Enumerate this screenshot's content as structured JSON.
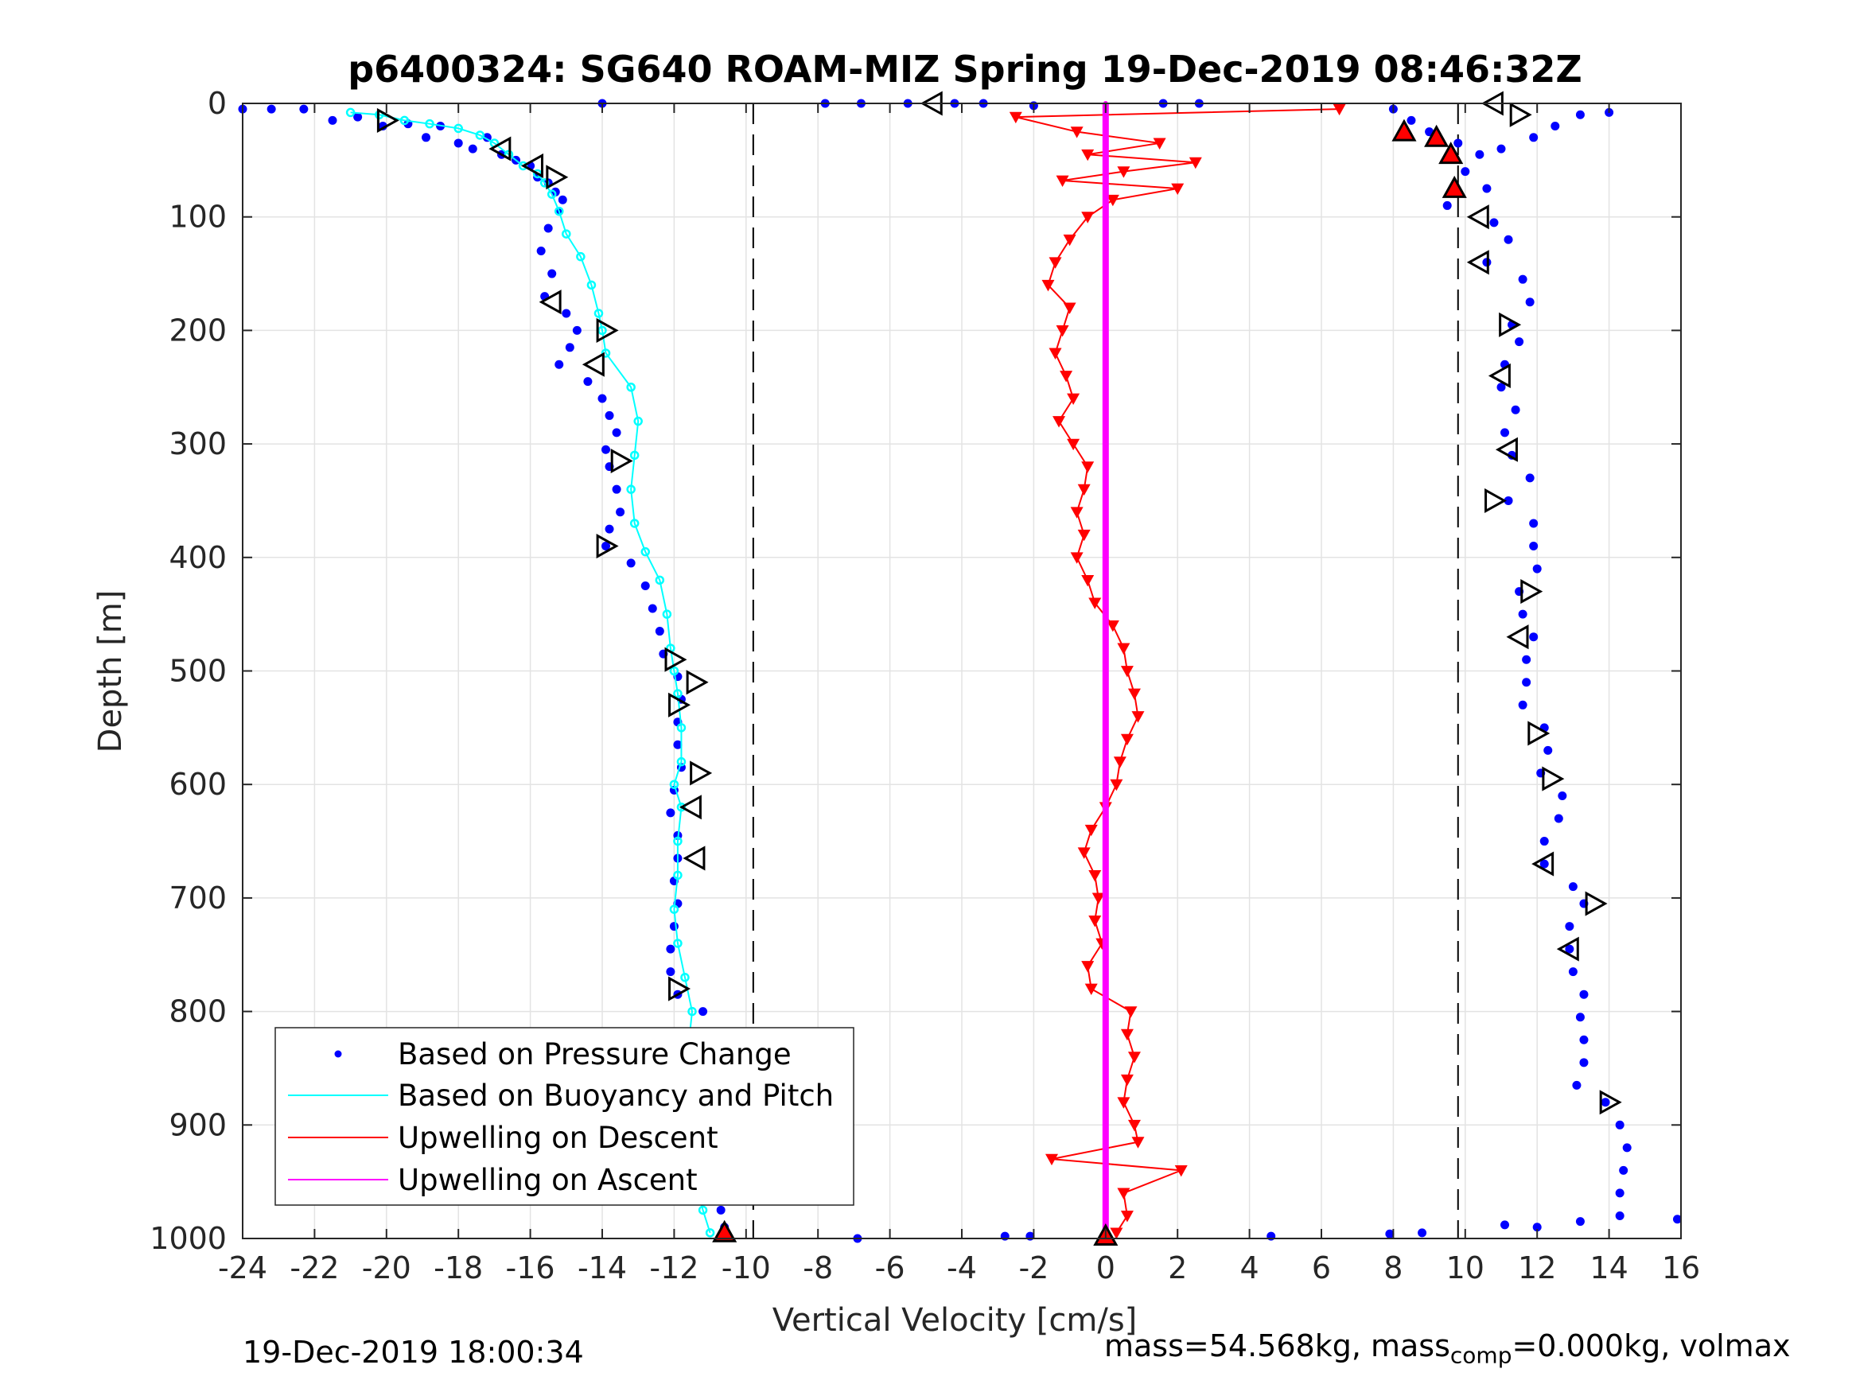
{
  "chart_data": {
    "type": "scatter",
    "title": "p6400324: SG640 ROAM-MIZ Spring 19-Dec-2019 08:46:32Z",
    "xlabel": "Vertical Velocity [cm/s]",
    "ylabel": "Depth [m]",
    "xlim": [
      -24,
      16
    ],
    "ylim": [
      1000,
      0
    ],
    "y_reversed": true,
    "xticks": [
      "-24",
      "-22",
      "-20",
      "-18",
      "-16",
      "-14",
      "-12",
      "-10",
      "-8",
      "-6",
      "-4",
      "-2",
      "0",
      "2",
      "4",
      "6",
      "8",
      "10",
      "12",
      "14",
      "16"
    ],
    "yticks": [
      "0",
      "100",
      "200",
      "300",
      "400",
      "500",
      "600",
      "700",
      "800",
      "900",
      "1000"
    ],
    "grid": true,
    "legend_position": "bottom-left",
    "reference_lines": {
      "x": [
        -9.8,
        9.8
      ],
      "style": "dashed",
      "color": "#000000"
    },
    "series": [
      {
        "name": "Based on Pressure Change",
        "color": "#0000ff",
        "marker": "dot",
        "profile": "descent",
        "points": [
          [
            -24.0,
            5
          ],
          [
            -23.2,
            5
          ],
          [
            -22.3,
            5
          ],
          [
            -21.5,
            15
          ],
          [
            -20.8,
            12
          ],
          [
            -20.1,
            20
          ],
          [
            -19.4,
            18
          ],
          [
            -18.9,
            30
          ],
          [
            -18.5,
            20
          ],
          [
            -18.0,
            35
          ],
          [
            -17.6,
            40
          ],
          [
            -17.2,
            30
          ],
          [
            -16.8,
            45
          ],
          [
            -16.4,
            50
          ],
          [
            -16.0,
            55
          ],
          [
            -15.8,
            65
          ],
          [
            -15.5,
            70
          ],
          [
            -15.3,
            78
          ],
          [
            -15.1,
            85
          ],
          [
            -15.2,
            95
          ],
          [
            -15.5,
            110
          ],
          [
            -15.7,
            130
          ],
          [
            -15.4,
            150
          ],
          [
            -15.6,
            170
          ],
          [
            -15.0,
            185
          ],
          [
            -14.7,
            200
          ],
          [
            -14.9,
            215
          ],
          [
            -15.2,
            230
          ],
          [
            -14.4,
            245
          ],
          [
            -14.0,
            260
          ],
          [
            -13.8,
            275
          ],
          [
            -13.6,
            290
          ],
          [
            -13.9,
            305
          ],
          [
            -13.8,
            320
          ],
          [
            -13.6,
            340
          ],
          [
            -13.5,
            360
          ],
          [
            -13.8,
            375
          ],
          [
            -13.9,
            390
          ],
          [
            -13.2,
            405
          ],
          [
            -12.8,
            425
          ],
          [
            -12.6,
            445
          ],
          [
            -12.4,
            465
          ],
          [
            -12.3,
            485
          ],
          [
            -11.9,
            505
          ],
          [
            -11.8,
            525
          ],
          [
            -11.9,
            545
          ],
          [
            -11.9,
            565
          ],
          [
            -11.8,
            585
          ],
          [
            -12.0,
            605
          ],
          [
            -12.1,
            625
          ],
          [
            -11.9,
            645
          ],
          [
            -11.9,
            665
          ],
          [
            -12.0,
            685
          ],
          [
            -11.9,
            705
          ],
          [
            -12.0,
            725
          ],
          [
            -12.1,
            745
          ],
          [
            -12.1,
            765
          ],
          [
            -11.9,
            785
          ],
          [
            -11.2,
            800
          ],
          [
            -11.0,
            820
          ],
          [
            -11.1,
            840
          ],
          [
            -11.0,
            860
          ],
          [
            -11.0,
            880
          ],
          [
            -11.1,
            900
          ],
          [
            -11.0,
            920
          ],
          [
            -10.9,
            940
          ],
          [
            -10.8,
            960
          ],
          [
            -10.7,
            975
          ],
          [
            -10.6,
            990
          ]
        ]
      },
      {
        "name": "Based on Pressure Change",
        "color": "#0000ff",
        "marker": "dot",
        "profile": "ascent",
        "points": [
          [
            8.0,
            5
          ],
          [
            8.5,
            15
          ],
          [
            9.0,
            25
          ],
          [
            9.8,
            35
          ],
          [
            10.4,
            45
          ],
          [
            11.0,
            40
          ],
          [
            11.9,
            30
          ],
          [
            12.5,
            20
          ],
          [
            13.2,
            10
          ],
          [
            14.0,
            8
          ],
          [
            10.0,
            60
          ],
          [
            10.6,
            75
          ],
          [
            9.5,
            90
          ],
          [
            10.8,
            105
          ],
          [
            11.2,
            120
          ],
          [
            10.6,
            140
          ],
          [
            11.6,
            155
          ],
          [
            11.8,
            175
          ],
          [
            11.3,
            195
          ],
          [
            11.5,
            210
          ],
          [
            11.1,
            230
          ],
          [
            11.0,
            250
          ],
          [
            11.4,
            270
          ],
          [
            11.1,
            290
          ],
          [
            11.3,
            310
          ],
          [
            11.8,
            330
          ],
          [
            11.2,
            350
          ],
          [
            11.9,
            370
          ],
          [
            11.9,
            390
          ],
          [
            12.0,
            410
          ],
          [
            11.5,
            430
          ],
          [
            11.6,
            450
          ],
          [
            11.9,
            470
          ],
          [
            11.7,
            490
          ],
          [
            11.7,
            510
          ],
          [
            11.6,
            530
          ],
          [
            12.2,
            550
          ],
          [
            12.3,
            570
          ],
          [
            12.1,
            590
          ],
          [
            12.7,
            610
          ],
          [
            12.6,
            630
          ],
          [
            12.2,
            650
          ],
          [
            12.2,
            670
          ],
          [
            13.0,
            690
          ],
          [
            13.3,
            705
          ],
          [
            12.9,
            725
          ],
          [
            12.9,
            745
          ],
          [
            13.0,
            765
          ],
          [
            13.3,
            785
          ],
          [
            13.2,
            805
          ],
          [
            13.3,
            825
          ],
          [
            13.3,
            845
          ],
          [
            13.1,
            865
          ],
          [
            13.9,
            880
          ],
          [
            14.3,
            900
          ],
          [
            14.5,
            920
          ],
          [
            14.4,
            940
          ],
          [
            14.3,
            960
          ],
          [
            14.3,
            980
          ]
        ]
      },
      {
        "name": "Based on Buoyancy and Pitch",
        "color": "#00ffff",
        "marker": "circle-line",
        "points": [
          [
            -21.0,
            8
          ],
          [
            -20.2,
            10
          ],
          [
            -19.5,
            15
          ],
          [
            -18.8,
            18
          ],
          [
            -18.0,
            22
          ],
          [
            -17.4,
            28
          ],
          [
            -17.0,
            35
          ],
          [
            -16.6,
            45
          ],
          [
            -16.2,
            55
          ],
          [
            -15.8,
            62
          ],
          [
            -15.6,
            70
          ],
          [
            -15.4,
            80
          ],
          [
            -15.2,
            95
          ],
          [
            -15.0,
            115
          ],
          [
            -14.6,
            135
          ],
          [
            -14.3,
            160
          ],
          [
            -14.1,
            185
          ],
          [
            -14.0,
            200
          ],
          [
            -13.9,
            220
          ],
          [
            -13.2,
            250
          ],
          [
            -13.0,
            280
          ],
          [
            -13.1,
            310
          ],
          [
            -13.2,
            340
          ],
          [
            -13.1,
            370
          ],
          [
            -12.8,
            395
          ],
          [
            -12.4,
            420
          ],
          [
            -12.2,
            450
          ],
          [
            -12.1,
            480
          ],
          [
            -12.0,
            500
          ],
          [
            -11.9,
            520
          ],
          [
            -11.8,
            550
          ],
          [
            -11.8,
            580
          ],
          [
            -12.0,
            600
          ],
          [
            -11.8,
            620
          ],
          [
            -11.9,
            650
          ],
          [
            -11.9,
            680
          ],
          [
            -12.0,
            710
          ],
          [
            -11.9,
            740
          ],
          [
            -11.7,
            770
          ],
          [
            -11.5,
            800
          ],
          [
            -11.6,
            830
          ],
          [
            -11.8,
            860
          ],
          [
            -11.7,
            890
          ],
          [
            -11.6,
            920
          ],
          [
            -11.4,
            950
          ],
          [
            -11.2,
            975
          ],
          [
            -11.0,
            995
          ]
        ]
      },
      {
        "name": "Upwelling on Descent",
        "color": "#ff0000",
        "marker": "triangle-down-line",
        "points": [
          [
            6.5,
            5
          ],
          [
            -2.5,
            12
          ],
          [
            -0.8,
            25
          ],
          [
            1.5,
            35
          ],
          [
            -0.5,
            45
          ],
          [
            2.5,
            52
          ],
          [
            0.5,
            60
          ],
          [
            -1.2,
            68
          ],
          [
            2.0,
            75
          ],
          [
            0.2,
            85
          ],
          [
            -0.5,
            100
          ],
          [
            -1.0,
            120
          ],
          [
            -1.4,
            140
          ],
          [
            -1.6,
            160
          ],
          [
            -1.0,
            180
          ],
          [
            -1.2,
            200
          ],
          [
            -1.4,
            220
          ],
          [
            -1.1,
            240
          ],
          [
            -0.9,
            260
          ],
          [
            -1.3,
            280
          ],
          [
            -0.9,
            300
          ],
          [
            -0.5,
            320
          ],
          [
            -0.6,
            340
          ],
          [
            -0.8,
            360
          ],
          [
            -0.6,
            380
          ],
          [
            -0.8,
            400
          ],
          [
            -0.5,
            420
          ],
          [
            -0.3,
            440
          ],
          [
            0.2,
            460
          ],
          [
            0.5,
            480
          ],
          [
            0.6,
            500
          ],
          [
            0.8,
            520
          ],
          [
            0.9,
            540
          ],
          [
            0.6,
            560
          ],
          [
            0.4,
            580
          ],
          [
            0.3,
            600
          ],
          [
            0.0,
            620
          ],
          [
            -0.4,
            640
          ],
          [
            -0.6,
            660
          ],
          [
            -0.3,
            680
          ],
          [
            -0.2,
            700
          ],
          [
            -0.3,
            720
          ],
          [
            -0.1,
            740
          ],
          [
            -0.5,
            760
          ],
          [
            -0.4,
            780
          ],
          [
            0.7,
            800
          ],
          [
            0.6,
            820
          ],
          [
            0.8,
            840
          ],
          [
            0.6,
            860
          ],
          [
            0.5,
            880
          ],
          [
            0.8,
            900
          ],
          [
            0.9,
            915
          ],
          [
            -1.5,
            930
          ],
          [
            2.1,
            940
          ],
          [
            0.5,
            960
          ],
          [
            0.6,
            980
          ],
          [
            0.3,
            995
          ]
        ]
      },
      {
        "name": "Upwelling on Ascent",
        "color": "#ff00ff",
        "marker": "line",
        "points": [
          [
            0.0,
            0
          ],
          [
            0.0,
            100
          ],
          [
            0.0,
            200
          ],
          [
            0.0,
            300
          ],
          [
            0.0,
            400
          ],
          [
            0.0,
            500
          ],
          [
            0.0,
            600
          ],
          [
            0.0,
            700
          ],
          [
            0.0,
            800
          ],
          [
            0.0,
            900
          ],
          [
            0.0,
            1000
          ]
        ]
      }
    ],
    "outliers": [
      [
        -14.0,
        0
      ],
      [
        -7.8,
        0
      ],
      [
        -6.8,
        0
      ],
      [
        -5.5,
        0
      ],
      [
        -4.2,
        0
      ],
      [
        -3.4,
        0
      ],
      [
        -2.0,
        2
      ],
      [
        1.6,
        0
      ],
      [
        2.6,
        0
      ],
      [
        -6.9,
        1000
      ],
      [
        -2.8,
        998
      ],
      [
        -2.1,
        998
      ],
      [
        4.6,
        998
      ],
      [
        7.9,
        996
      ],
      [
        8.8,
        995
      ],
      [
        11.1,
        988
      ],
      [
        12.0,
        990
      ],
      [
        13.2,
        985
      ],
      [
        15.9,
        983
      ],
      [
        -12.8,
        935
      ],
      [
        -9.9,
        940
      ]
    ],
    "annotations": {
      "triangle_left_markers": [
        [
          -4.8,
          0
        ],
        [
          10.8,
          0
        ],
        [
          -16.8,
          40
        ],
        [
          -15.9,
          55
        ],
        [
          -15.4,
          175
        ],
        [
          -14.2,
          230
        ],
        [
          -11.5,
          620
        ],
        [
          -11.4,
          665
        ],
        [
          12.2,
          670
        ],
        [
          12.9,
          745
        ],
        [
          11.5,
          470
        ],
        [
          10.4,
          140
        ],
        [
          10.4,
          100
        ],
        [
          11.2,
          305
        ],
        [
          11.0,
          240
        ]
      ],
      "triangle_right_markers": [
        [
          -20.0,
          15
        ],
        [
          -15.3,
          65
        ],
        [
          -13.9,
          200
        ],
        [
          -13.5,
          315
        ],
        [
          -13.9,
          390
        ],
        [
          -12.0,
          490
        ],
        [
          -11.4,
          510
        ],
        [
          -11.9,
          530
        ],
        [
          -11.3,
          590
        ],
        [
          -11.9,
          780
        ],
        [
          -11.0,
          865
        ],
        [
          -11.0,
          930
        ],
        [
          11.5,
          10
        ],
        [
          11.2,
          195
        ],
        [
          12.0,
          555
        ],
        [
          12.4,
          595
        ],
        [
          13.6,
          705
        ],
        [
          11.8,
          430
        ],
        [
          14.0,
          880
        ],
        [
          10.8,
          350
        ]
      ],
      "red_triangle_up_markers": [
        [
          8.3,
          25
        ],
        [
          9.2,
          30
        ],
        [
          9.6,
          45
        ],
        [
          9.7,
          75
        ],
        [
          -10.6,
          995
        ],
        [
          0.0,
          998
        ]
      ]
    }
  },
  "legend": {
    "items": [
      {
        "label": "Based on Pressure Change",
        "color": "#0000ff",
        "style": "dot"
      },
      {
        "label": "Based on Buoyancy and Pitch",
        "color": "#00ffff",
        "style": "line"
      },
      {
        "label": "Upwelling on Descent",
        "color": "#ff0000",
        "style": "line"
      },
      {
        "label": "Upwelling on Ascent",
        "color": "#ff00ff",
        "style": "line"
      }
    ]
  },
  "footer": {
    "timestamp": "19-Dec-2019 18:00:34",
    "mass_prefix": "mass=54.568kg, mass",
    "mass_sub": "comp",
    "mass_suffix": "=0.000kg, volmax"
  }
}
